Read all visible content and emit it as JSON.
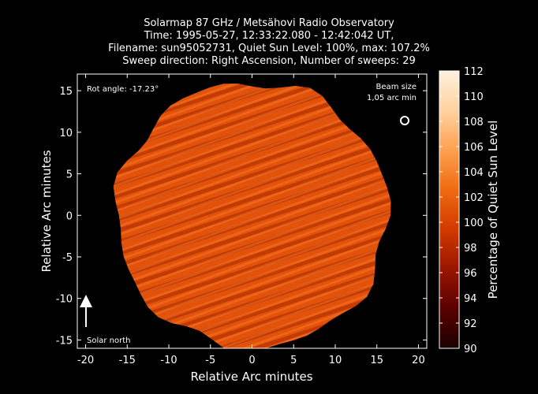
{
  "chart_data": {
    "type": "heatmap",
    "title_lines": [
      "Solarmap 87 GHz / Metsähovi Radio Observatory",
      "Time: 1995-05-27, 12:33:22.080 - 12:42:042 UT,",
      "Filename: sun95052731, Quiet Sun Level: 100%, max: 107.2%",
      "Sweep direction: Right Ascension, Number of sweeps: 29"
    ],
    "xlabel": "Relative Arc minutes",
    "ylabel": "Relative Arc minutes",
    "xlim": [
      -21,
      21
    ],
    "ylim": [
      -16,
      17
    ],
    "xticks": [
      -20,
      -15,
      -10,
      -5,
      0,
      5,
      10,
      15,
      20
    ],
    "yticks": [
      -15,
      -10,
      -5,
      0,
      5,
      10,
      15
    ],
    "colorbar": {
      "label": "Percentage of Quiet Sun Level",
      "range": [
        90,
        112
      ],
      "ticks": [
        90,
        92,
        94,
        96,
        98,
        100,
        102,
        104,
        106,
        108,
        110,
        112
      ],
      "colors": [
        "#1a0000",
        "#5a0000",
        "#9a1500",
        "#d23a00",
        "#f06a10",
        "#ffa050",
        "#ffd2a0",
        "#fff0dc"
      ]
    },
    "annotations": {
      "rot_angle": "Rot angle: -17.23°",
      "beam_size_line1": "Beam size",
      "beam_size_line2": "1,05 arc min",
      "solar_north": "Solar north"
    },
    "disk": {
      "center": [
        0,
        0
      ],
      "radius_arcmin": 16,
      "typical_level": 101,
      "range": [
        97,
        105
      ]
    }
  }
}
